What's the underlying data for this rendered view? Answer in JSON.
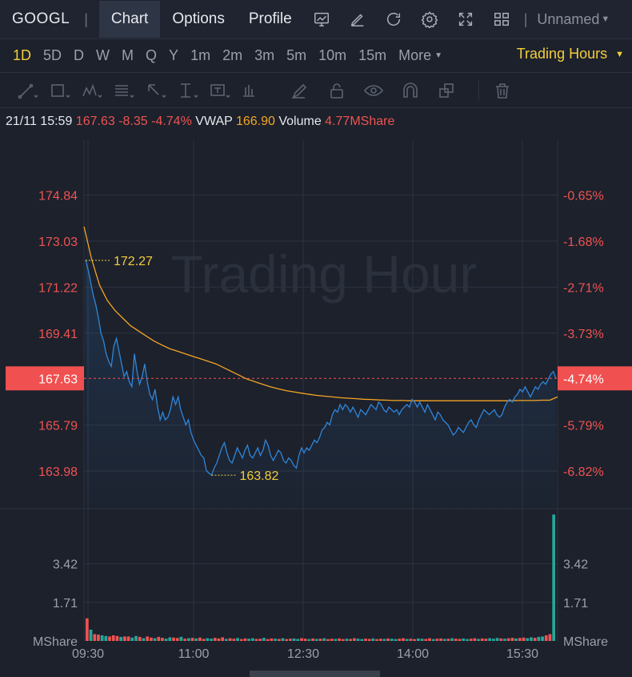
{
  "header": {
    "ticker": "GOOGL",
    "separator": "|",
    "tabs": [
      {
        "label": "Chart",
        "active": true
      },
      {
        "label": "Options",
        "active": false
      },
      {
        "label": "Profile",
        "active": false
      }
    ],
    "toolbar_icons": [
      "indicator-icon",
      "draw-icon",
      "refresh-icon",
      "gear-icon",
      "fullscreen-icon",
      "layout-grid-icon"
    ],
    "layout_name": "Unnamed"
  },
  "timeframes": {
    "items": [
      "1D",
      "5D",
      "D",
      "W",
      "M",
      "Q",
      "Y",
      "1m",
      "2m",
      "3m",
      "5m",
      "10m",
      "15m"
    ],
    "selected": "1D",
    "more_label": "More",
    "trading_hours_label": "Trading Hours"
  },
  "drawing_tools": [
    "trendline-icon",
    "rectangle-icon",
    "pattern-icon",
    "fib-icon",
    "arrow-icon",
    "measure-icon",
    "text-icon",
    "chart-pattern-icon",
    "brush-icon",
    "lock-icon",
    "eye-icon",
    "magnet-icon",
    "duplicate-icon",
    "trash-icon"
  ],
  "info": {
    "datetime": "21/11 15:59",
    "price": "167.63",
    "change": "-8.35",
    "change_pct": "-4.74%",
    "vwap_label": "VWAP",
    "vwap_value": "166.90",
    "volume_label": "Volume",
    "volume_value": "4.77MShare"
  },
  "chart_data": {
    "type": "line",
    "watermark": "Trading Hour",
    "x_ticks": [
      "09:30",
      "11:00",
      "12:30",
      "14:00",
      "15:30"
    ],
    "price_axis_left": [
      "174.84",
      "173.03",
      "171.22",
      "169.41",
      "167.63",
      "165.79",
      "163.98"
    ],
    "price_axis_right": [
      "-0.65%",
      "-1.68%",
      "-2.71%",
      "-3.73%",
      "-4.74%",
      "-5.79%",
      "-6.82%"
    ],
    "current_price_label": "167.63",
    "current_pct_label": "-4.74%",
    "high_label": "172.27",
    "low_label": "163.82",
    "volume_axis_left": [
      "3.42",
      "1.71",
      "MShare"
    ],
    "volume_axis_right": [
      "3.42",
      "1.71",
      "MShare"
    ],
    "ylim": [
      162.5,
      177.0
    ],
    "volume_ylim": [
      0,
      5.5
    ],
    "colors": {
      "price": "#2f86d9",
      "vwap": "#f5a524",
      "up": "#26a69a",
      "down": "#ef5350",
      "grid": "#2c3240",
      "current": "#f05050"
    },
    "series": [
      {
        "name": "",
        "values": [
          172.3,
          171.9,
          171.4,
          170.9,
          170.5,
          170.0,
          169.4,
          169.1,
          168.6,
          168.3,
          168.1,
          168.9,
          169.2,
          168.7,
          168.2,
          167.7,
          167.9,
          167.5,
          167.3,
          168.6,
          167.9,
          167.4,
          167.7,
          168.2,
          167.5,
          167.0,
          166.8,
          167.2,
          166.5,
          166.0,
          166.3,
          166.0,
          166.1,
          166.4,
          166.9,
          166.6,
          166.9,
          166.4,
          166.1,
          165.8,
          166.0,
          165.5,
          165.2,
          165.0,
          164.8,
          164.6,
          164.5,
          164.0,
          163.9,
          163.82,
          164.1,
          164.3,
          164.6,
          164.9,
          165.1,
          164.7,
          164.4,
          164.3,
          164.6,
          164.9,
          164.7,
          164.5,
          164.8,
          165.0,
          164.6,
          164.5,
          164.7,
          164.9,
          164.6,
          164.8,
          165.2,
          165.0,
          164.6,
          164.4,
          164.6,
          164.8,
          164.7,
          164.4,
          164.3,
          164.5,
          164.4,
          164.2,
          164.1,
          164.6,
          164.9,
          164.7,
          164.9,
          164.8,
          165.0,
          165.2,
          165.1,
          165.3,
          165.6,
          165.7,
          165.9,
          165.8,
          166.2,
          166.4,
          166.3,
          166.6,
          166.4,
          166.6,
          166.5,
          166.3,
          166.5,
          166.3,
          166.1,
          166.4,
          166.3,
          166.2,
          166.4,
          166.6,
          166.5,
          166.4,
          166.7,
          166.6,
          166.4,
          166.3,
          166.5,
          166.4,
          166.3,
          166.4,
          166.2,
          166.4,
          166.5,
          166.6,
          166.5,
          166.8,
          166.7,
          166.5,
          166.7,
          166.5,
          166.3,
          166.6,
          166.4,
          166.2,
          166.0,
          166.3,
          166.2,
          166.0,
          165.9,
          165.8,
          165.6,
          165.4,
          165.5,
          165.7,
          165.6,
          165.5,
          165.7,
          165.9,
          166.0,
          165.8,
          165.7,
          166.0,
          166.2,
          166.4,
          166.3,
          166.2,
          166.3,
          166.4,
          166.2,
          166.1,
          166.2,
          166.5,
          166.7,
          166.8,
          166.7,
          166.9,
          167.0,
          167.2,
          167.1,
          167.3,
          167.1,
          166.9,
          167.1,
          167.3,
          167.2,
          167.4,
          167.5,
          167.4,
          167.6,
          167.8,
          167.9,
          167.63
        ]
      },
      {
        "name": "VWAP",
        "values": [
          173.6,
          172.3,
          171.3,
          170.7,
          170.3,
          170.0,
          169.7,
          169.5,
          169.3,
          169.1,
          168.95,
          168.8,
          168.7,
          168.6,
          168.5,
          168.4,
          168.3,
          168.2,
          168.05,
          167.9,
          167.75,
          167.6,
          167.5,
          167.4,
          167.3,
          167.22,
          167.15,
          167.1,
          167.05,
          167.0,
          166.96,
          166.93,
          166.9,
          166.87,
          166.85,
          166.83,
          166.81,
          166.8,
          166.78,
          166.77,
          166.76,
          166.76,
          166.75,
          166.75,
          166.75,
          166.75,
          166.75,
          166.75,
          166.75,
          166.75,
          166.75,
          166.75,
          166.75,
          166.75,
          166.75,
          166.75,
          166.76,
          166.76,
          166.76,
          166.77,
          166.77,
          166.9
        ]
      }
    ],
    "volume_values": [
      1.0,
      0.5,
      0.3,
      0.28,
      0.25,
      0.22,
      0.2,
      0.25,
      0.22,
      0.18,
      0.2,
      0.2,
      0.15,
      0.22,
      0.18,
      0.12,
      0.2,
      0.15,
      0.12,
      0.18,
      0.14,
      0.1,
      0.16,
      0.15,
      0.13,
      0.18,
      0.1,
      0.12,
      0.14,
      0.11,
      0.15,
      0.09,
      0.12,
      0.1,
      0.14,
      0.11,
      0.16,
      0.09,
      0.12,
      0.1,
      0.13,
      0.08,
      0.11,
      0.1,
      0.12,
      0.09,
      0.1,
      0.14,
      0.08,
      0.11,
      0.1,
      0.09,
      0.12,
      0.08,
      0.1,
      0.11,
      0.09,
      0.12,
      0.1,
      0.08,
      0.11,
      0.09,
      0.1,
      0.12,
      0.08,
      0.1,
      0.09,
      0.11,
      0.08,
      0.1,
      0.09,
      0.12,
      0.1,
      0.08,
      0.1,
      0.09,
      0.11,
      0.08,
      0.1,
      0.09,
      0.11,
      0.1,
      0.08,
      0.1,
      0.12,
      0.09,
      0.1,
      0.08,
      0.11,
      0.1,
      0.09,
      0.12,
      0.08,
      0.1,
      0.11,
      0.09,
      0.1,
      0.12,
      0.1,
      0.09,
      0.11,
      0.08,
      0.1,
      0.12,
      0.09,
      0.11,
      0.1,
      0.12,
      0.1,
      0.13,
      0.11,
      0.1,
      0.12,
      0.14,
      0.11,
      0.13,
      0.15,
      0.12,
      0.16,
      0.14,
      0.18,
      0.2,
      0.25,
      0.3,
      5.6
    ],
    "volume_directions": "dudduudddudduududdudduuddudududduuddduddudduudduddududduuddudududduddudduuddudduduuddudduudduddududduuddudduuududdudduuduud"
  }
}
